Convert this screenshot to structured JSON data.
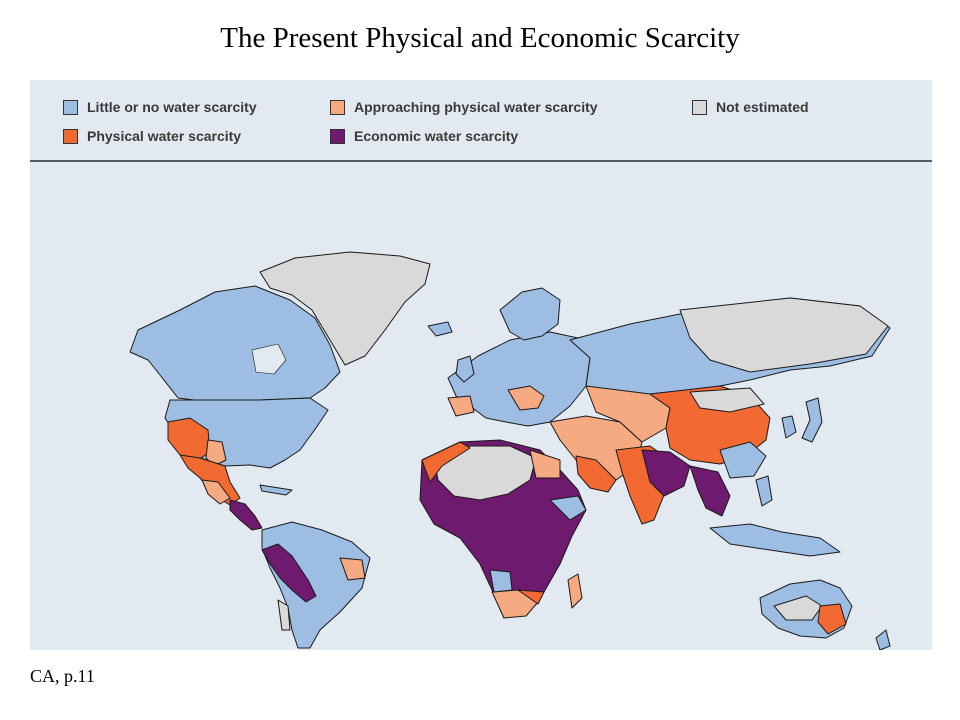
{
  "title": "The Present Physical and Economic Scarcity",
  "caption": "CA, p.11",
  "legend": [
    {
      "label": "Little or no water scarcity",
      "color": "#9dbde3"
    },
    {
      "label": "Approaching physical water scarcity",
      "color": "#f6aa82"
    },
    {
      "label": "Not estimated",
      "color": "#d9d9d9"
    },
    {
      "label": "Physical water scarcity",
      "color": "#f26a32"
    },
    {
      "label": "Economic water scarcity",
      "color": "#6e1a6e"
    }
  ],
  "colors": {
    "ocean": "#e3e9f0",
    "border": "#1a1a1a"
  }
}
